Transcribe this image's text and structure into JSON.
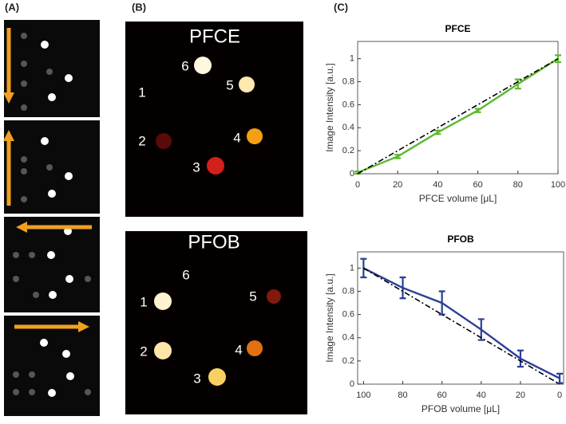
{
  "panel_labels": [
    "(A)",
    "(B)",
    "(C)"
  ],
  "images": [
    {
      "title": "PFCE",
      "labels": [
        "1",
        "2",
        "3",
        "4",
        "5",
        "6"
      ]
    },
    {
      "title": "PFOB",
      "labels": [
        "1",
        "2",
        "3",
        "4",
        "5",
        "6"
      ]
    }
  ],
  "chart_data": [
    {
      "type": "line",
      "title": "PFCE",
      "x_label": "PFCE volume [μL]",
      "y_label": "Image Intensity [a.u.]",
      "x": [
        0,
        20,
        40,
        60,
        80,
        100
      ],
      "series": [
        {
          "color": "#5cb82e",
          "values": [
            0.01,
            0.15,
            0.36,
            0.55,
            0.78,
            1.0
          ],
          "errors": [
            0.01,
            0.015,
            0.015,
            0.015,
            0.04,
            0.03
          ]
        },
        {
          "color": "#000000",
          "style": "dashdot",
          "values": [
            0,
            0.2,
            0.4,
            0.6,
            0.8,
            1.0
          ]
        }
      ],
      "xlim": [
        0,
        100
      ],
      "xticks": [
        0,
        20,
        40,
        60,
        80,
        100
      ],
      "ylim": [
        0,
        1.15
      ],
      "yticks": [
        0,
        0.2,
        0.4,
        0.6,
        0.8,
        1
      ]
    },
    {
      "type": "line",
      "title": "PFOB",
      "x_label": "PFOB volume [μL]",
      "y_label": "Image Intensity [a.u.]",
      "x": [
        100,
        80,
        60,
        40,
        20,
        0
      ],
      "series": [
        {
          "color": "#2b3f95",
          "values": [
            1.0,
            0.83,
            0.7,
            0.47,
            0.22,
            0.05
          ],
          "errors": [
            0.08,
            0.09,
            0.1,
            0.09,
            0.07,
            0.04
          ]
        },
        {
          "color": "#000000",
          "style": "dashdot",
          "values": [
            1.0,
            0.8,
            0.6,
            0.4,
            0.2,
            0
          ]
        }
      ],
      "xlim": [
        103,
        -2
      ],
      "xticks": [
        100,
        80,
        60,
        40,
        20,
        0
      ],
      "ylim": [
        0,
        1.14
      ],
      "yticks": [
        0,
        0.2,
        0.4,
        0.6,
        0.8,
        1
      ]
    }
  ]
}
